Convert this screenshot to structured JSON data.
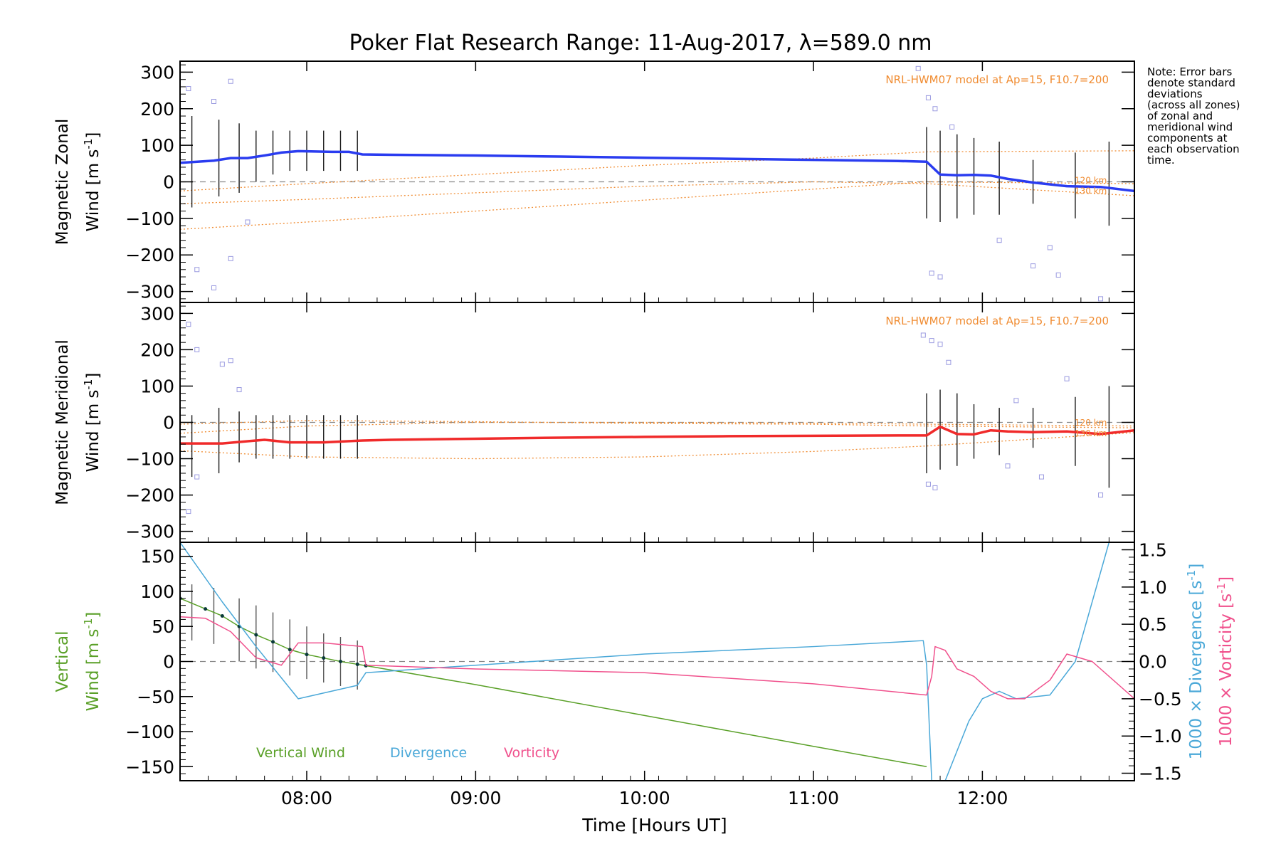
{
  "chart_data": {
    "type": "line",
    "title": "Poker Flat Research Range: 11-Aug-2017, λ=589.0 nm",
    "xlabel": "Time [Hours UT]",
    "x_range_hours": [
      7.25,
      12.9
    ],
    "x_ticks": [
      8,
      9,
      10,
      11,
      12
    ],
    "x_tick_labels": [
      "08:00",
      "09:00",
      "10:00",
      "11:00",
      "12:00"
    ],
    "note": [
      "Note: Error bars",
      "denote standard",
      "deviations",
      "(across all zones)",
      "of zonal and",
      "meridional wind",
      "components at",
      "each observation",
      "time."
    ],
    "colors": {
      "zonal": "#2a3cf0",
      "meridional": "#f02a2a",
      "model": "#f08c32",
      "samples": "#9a9ae0",
      "vertical": "#5aa028",
      "divergence": "#4aa8d8",
      "vorticity": "#f0508c",
      "grid": "#888888"
    },
    "panels": [
      {
        "id": "zonal",
        "ylabel_line1": "Magnetic Zonal",
        "ylabel_line2": "Wind [m s",
        "ylabel_sup": "-1",
        "ylabel_end": "]",
        "ylim": [
          -330,
          330
        ],
        "yticks": [
          -300,
          -200,
          -100,
          0,
          100,
          200,
          300
        ],
        "ytick_labels": [
          "−300",
          "−200",
          "−100",
          "0",
          "100",
          "200",
          "300"
        ],
        "model_label": "NRL-HWM07 model at Ap=15, F10.7=200",
        "alt_labels": [
          "120 km",
          "130 km"
        ],
        "series": [
          {
            "x": [
              7.25,
              7.45,
              7.55,
              7.65,
              7.75,
              7.85,
              7.95,
              8.05,
              8.15,
              8.25,
              8.33,
              8.5,
              9.0,
              9.5,
              10.0,
              10.5,
              11.0,
              11.5,
              11.67,
              11.75,
              11.85,
              11.95,
              12.05,
              12.15,
              12.3,
              12.5,
              12.7,
              12.9
            ],
            "y": [
              52,
              58,
              65,
              65,
              72,
              80,
              84,
              83,
              82,
              82,
              75,
              74,
              72,
              69,
              66,
              63,
              60,
              57,
              55,
              20,
              18,
              19,
              17,
              8,
              -2,
              -12,
              -14,
              -25
            ]
          }
        ],
        "model_lines": [
          {
            "x": [
              7.25,
              8.0,
              9.0,
              10.0,
              11.0,
              11.67,
              12.9
            ],
            "y": [
              -60,
              -48,
              -30,
              -12,
              0,
              -5,
              -38
            ]
          },
          {
            "x": [
              7.25,
              8.0,
              9.0,
              10.0,
              11.0,
              11.67,
              12.9
            ],
            "y": [
              -130,
              -110,
              -80,
              -50,
              -20,
              0,
              -5
            ]
          },
          {
            "x": [
              7.25,
              8.0,
              9.0,
              10.0,
              11.0,
              11.67,
              12.9
            ],
            "y": [
              -25,
              -5,
              20,
              45,
              65,
              82,
              85
            ]
          }
        ],
        "scatter_points": [
          {
            "x": 7.3,
            "y": 255
          },
          {
            "x": 7.35,
            "y": -240
          },
          {
            "x": 7.45,
            "y": 220
          },
          {
            "x": 7.55,
            "y": 275
          },
          {
            "x": 7.55,
            "y": -210
          },
          {
            "x": 7.45,
            "y": -290
          },
          {
            "x": 7.65,
            "y": -110
          },
          {
            "x": 11.62,
            "y": 310
          },
          {
            "x": 11.68,
            "y": 230
          },
          {
            "x": 11.72,
            "y": 200
          },
          {
            "x": 11.75,
            "y": -260
          },
          {
            "x": 11.7,
            "y": -250
          },
          {
            "x": 11.82,
            "y": 150
          },
          {
            "x": 12.1,
            "y": -160
          },
          {
            "x": 12.4,
            "y": -180
          },
          {
            "x": 12.45,
            "y": -255
          },
          {
            "x": 12.7,
            "y": -320
          },
          {
            "x": 12.3,
            "y": -230
          }
        ],
        "error_bars": [
          {
            "x": 7.32,
            "lo": -70,
            "hi": 180
          },
          {
            "x": 7.48,
            "lo": -40,
            "hi": 170
          },
          {
            "x": 7.6,
            "lo": -30,
            "hi": 160
          },
          {
            "x": 7.7,
            "lo": 0,
            "hi": 140
          },
          {
            "x": 7.8,
            "lo": 20,
            "hi": 140
          },
          {
            "x": 7.9,
            "lo": 30,
            "hi": 140
          },
          {
            "x": 8.0,
            "lo": 30,
            "hi": 140
          },
          {
            "x": 8.1,
            "lo": 30,
            "hi": 140
          },
          {
            "x": 8.2,
            "lo": 30,
            "hi": 140
          },
          {
            "x": 8.3,
            "lo": 30,
            "hi": 140
          },
          {
            "x": 11.67,
            "lo": -100,
            "hi": 150
          },
          {
            "x": 11.75,
            "lo": -110,
            "hi": 140
          },
          {
            "x": 11.85,
            "lo": -100,
            "hi": 130
          },
          {
            "x": 11.95,
            "lo": -90,
            "hi": 120
          },
          {
            "x": 12.1,
            "lo": -90,
            "hi": 110
          },
          {
            "x": 12.3,
            "lo": -60,
            "hi": 60
          },
          {
            "x": 12.55,
            "lo": -100,
            "hi": 80
          },
          {
            "x": 12.75,
            "lo": -120,
            "hi": 110
          }
        ]
      },
      {
        "id": "meridional",
        "ylabel_line1": "Magnetic Meridional",
        "ylabel_line2": "Wind [m s",
        "ylabel_sup": "-1",
        "ylabel_end": "]",
        "ylim": [
          -330,
          330
        ],
        "yticks": [
          -300,
          -200,
          -100,
          0,
          100,
          200,
          300
        ],
        "ytick_labels": [
          "−300",
          "−200",
          "−100",
          "0",
          "100",
          "200",
          "300"
        ],
        "model_label": "NRL-HWM07 model at Ap=15, F10.7=200",
        "alt_labels": [
          "120 km",
          "130 km"
        ],
        "series": [
          {
            "x": [
              7.25,
              7.5,
              7.65,
              7.75,
              7.9,
              8.1,
              8.33,
              8.5,
              9.0,
              9.5,
              10.0,
              10.5,
              11.0,
              11.5,
              11.67,
              11.75,
              11.85,
              11.95,
              12.05,
              12.15,
              12.3,
              12.5,
              12.7,
              12.9
            ],
            "y": [
              -58,
              -58,
              -52,
              -48,
              -55,
              -55,
              -50,
              -48,
              -45,
              -42,
              -40,
              -38,
              -37,
              -36,
              -36,
              -12,
              -32,
              -33,
              -22,
              -25,
              -27,
              -25,
              -32,
              -22
            ]
          }
        ],
        "model_lines": [
          {
            "x": [
              7.25,
              8.0,
              9.0,
              10.0,
              11.0,
              11.67,
              12.9
            ],
            "y": [
              -78,
              -95,
              -100,
              -95,
              -80,
              -65,
              -28
            ]
          },
          {
            "x": [
              7.25,
              8.0,
              9.0,
              10.0,
              11.0,
              11.67,
              12.9
            ],
            "y": [
              -30,
              -10,
              0,
              0,
              -2,
              -5,
              -10
            ]
          },
          {
            "x": [
              7.25,
              8.0,
              9.0,
              10.0,
              11.0,
              11.67,
              12.9
            ],
            "y": [
              -5,
              5,
              2,
              -3,
              -5,
              -10,
              -15
            ]
          }
        ],
        "scatter_points": [
          {
            "x": 7.3,
            "y": 270
          },
          {
            "x": 7.35,
            "y": 200
          },
          {
            "x": 7.5,
            "y": 160
          },
          {
            "x": 7.55,
            "y": 170
          },
          {
            "x": 7.3,
            "y": -245
          },
          {
            "x": 7.35,
            "y": -150
          },
          {
            "x": 7.6,
            "y": 90
          },
          {
            "x": 11.65,
            "y": 240
          },
          {
            "x": 11.7,
            "y": 225
          },
          {
            "x": 11.75,
            "y": 215
          },
          {
            "x": 11.8,
            "y": 165
          },
          {
            "x": 11.72,
            "y": -180
          },
          {
            "x": 11.68,
            "y": -170
          },
          {
            "x": 12.15,
            "y": -120
          },
          {
            "x": 12.35,
            "y": -150
          },
          {
            "x": 12.7,
            "y": -200
          },
          {
            "x": 12.5,
            "y": 120
          },
          {
            "x": 12.2,
            "y": 60
          }
        ],
        "error_bars": [
          {
            "x": 7.32,
            "lo": -150,
            "hi": 20
          },
          {
            "x": 7.48,
            "lo": -140,
            "hi": 40
          },
          {
            "x": 7.6,
            "lo": -110,
            "hi": 30
          },
          {
            "x": 7.7,
            "lo": -100,
            "hi": 20
          },
          {
            "x": 7.8,
            "lo": -100,
            "hi": 20
          },
          {
            "x": 7.9,
            "lo": -100,
            "hi": 20
          },
          {
            "x": 8.0,
            "lo": -100,
            "hi": 20
          },
          {
            "x": 8.1,
            "lo": -100,
            "hi": 20
          },
          {
            "x": 8.2,
            "lo": -100,
            "hi": 20
          },
          {
            "x": 8.3,
            "lo": -100,
            "hi": 20
          },
          {
            "x": 11.67,
            "lo": -140,
            "hi": 80
          },
          {
            "x": 11.75,
            "lo": -130,
            "hi": 90
          },
          {
            "x": 11.85,
            "lo": -120,
            "hi": 80
          },
          {
            "x": 11.95,
            "lo": -100,
            "hi": 50
          },
          {
            "x": 12.1,
            "lo": -90,
            "hi": 40
          },
          {
            "x": 12.3,
            "lo": -70,
            "hi": 40
          },
          {
            "x": 12.55,
            "lo": -120,
            "hi": 70
          },
          {
            "x": 12.75,
            "lo": -180,
            "hi": 100
          }
        ]
      },
      {
        "id": "vertical",
        "ylabel_line1": "Vertical",
        "ylabel_line2": "Wind [m s",
        "ylabel_sup": "-1",
        "ylabel_end": "]",
        "ylim": [
          -170,
          170
        ],
        "yticks": [
          -150,
          -100,
          -50,
          0,
          50,
          100,
          150
        ],
        "ytick_labels": [
          "−150",
          "−100",
          "−50",
          "0",
          "50",
          "100",
          "150"
        ],
        "right_axis": {
          "ylim": [
            -1.6,
            1.6
          ],
          "yticks": [
            -1.5,
            -1.0,
            -0.5,
            0.0,
            0.5,
            1.0,
            1.5
          ],
          "ytick_labels": [
            "−1.5",
            "−1.0",
            "−0.5",
            "0.0",
            "0.5",
            "1.0",
            "1.5"
          ],
          "label_divergence": "1000 × Divergence [s",
          "label_vorticity": "1000 × Vorticity [s",
          "label_sup": "-1",
          "label_end": "]"
        },
        "legend": [
          "Vertical Wind",
          "Divergence",
          "Vorticity"
        ],
        "series": [
          {
            "name": "Vertical Wind",
            "axis": "left",
            "x": [
              7.25,
              7.4,
              7.5,
              7.6,
              7.7,
              7.8,
              7.9,
              8.0,
              8.1,
              8.2,
              8.3,
              8.35,
              9.0,
              10.0,
              11.0,
              11.67
            ],
            "y": [
              90,
              75,
              65,
              50,
              38,
              28,
              17,
              10,
              5,
              0,
              -4,
              -6,
              -33,
              -77,
              -121,
              -150
            ]
          },
          {
            "name": "Divergence",
            "axis": "right",
            "x": [
              7.25,
              7.5,
              7.7,
              7.95,
              8.3,
              8.35,
              9.0,
              10.0,
              11.0,
              11.65,
              11.67,
              11.7,
              11.78,
              11.85,
              11.92,
              12.0,
              12.1,
              12.2,
              12.4,
              12.55,
              12.75,
              12.9
            ],
            "y": [
              1.6,
              0.8,
              0.2,
              -0.5,
              -0.32,
              -0.15,
              -0.05,
              0.1,
              0.2,
              0.28,
              -0.05,
              -1.6,
              -1.6,
              -1.2,
              -0.8,
              -0.5,
              -0.4,
              -0.5,
              -0.45,
              0.0,
              1.6,
              1.6
            ]
          },
          {
            "name": "Vorticity",
            "axis": "right",
            "x": [
              7.25,
              7.4,
              7.55,
              7.7,
              7.85,
              7.95,
              8.1,
              8.33,
              8.35,
              9.0,
              10.0,
              11.0,
              11.67,
              11.7,
              11.72,
              11.78,
              11.85,
              11.95,
              12.05,
              12.15,
              12.25,
              12.4,
              12.5,
              12.65,
              12.9
            ],
            "y": [
              0.6,
              0.58,
              0.4,
              0.05,
              -0.05,
              0.25,
              0.25,
              0.2,
              -0.05,
              -0.1,
              -0.15,
              -0.3,
              -0.45,
              -0.2,
              0.2,
              0.15,
              -0.1,
              -0.2,
              -0.4,
              -0.5,
              -0.5,
              -0.25,
              0.1,
              0.0,
              -0.5
            ]
          }
        ],
        "error_bars": [
          {
            "x": 7.32,
            "lo": 30,
            "hi": 110
          },
          {
            "x": 7.45,
            "lo": 25,
            "hi": 105
          },
          {
            "x": 7.6,
            "lo": 0,
            "hi": 90
          },
          {
            "x": 7.7,
            "lo": -10,
            "hi": 80
          },
          {
            "x": 7.8,
            "lo": -15,
            "hi": 70
          },
          {
            "x": 7.9,
            "lo": -20,
            "hi": 60
          },
          {
            "x": 8.0,
            "lo": -25,
            "hi": 50
          },
          {
            "x": 8.1,
            "lo": -30,
            "hi": 40
          },
          {
            "x": 8.2,
            "lo": -35,
            "hi": 35
          },
          {
            "x": 8.3,
            "lo": -40,
            "hi": 30
          }
        ]
      }
    ]
  }
}
